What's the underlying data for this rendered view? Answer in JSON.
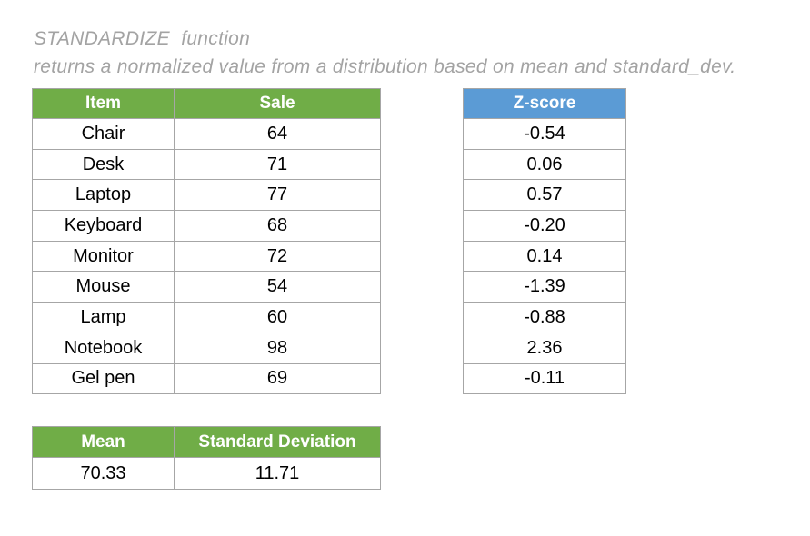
{
  "header": {
    "title": "STANDARDIZE  function",
    "subtitle": "returns a normalized value from a distribution based on mean and standard_dev."
  },
  "colors": {
    "green_header": "#70AD47",
    "blue_header": "#5B9BD5",
    "border_gray": "#A6A6A6",
    "title_gray": "#A3A3A3"
  },
  "main_table": {
    "columns": [
      "Item",
      "Sale"
    ],
    "rows": [
      {
        "item": "Chair",
        "sale": "64"
      },
      {
        "item": "Desk",
        "sale": "71"
      },
      {
        "item": "Laptop",
        "sale": "77"
      },
      {
        "item": "Keyboard",
        "sale": "68"
      },
      {
        "item": "Monitor",
        "sale": "72"
      },
      {
        "item": "Mouse",
        "sale": "54"
      },
      {
        "item": "Lamp",
        "sale": "60"
      },
      {
        "item": "Notebook",
        "sale": "98"
      },
      {
        "item": "Gel pen",
        "sale": "69"
      }
    ]
  },
  "zscore_table": {
    "header": "Z-score",
    "values": [
      "-0.54",
      "0.06",
      "0.57",
      "-0.20",
      "0.14",
      "-1.39",
      "-0.88",
      "2.36",
      "-0.11"
    ]
  },
  "stats_table": {
    "columns": [
      "Mean",
      "Standard Deviation"
    ],
    "values": [
      "70.33",
      "11.71"
    ]
  }
}
